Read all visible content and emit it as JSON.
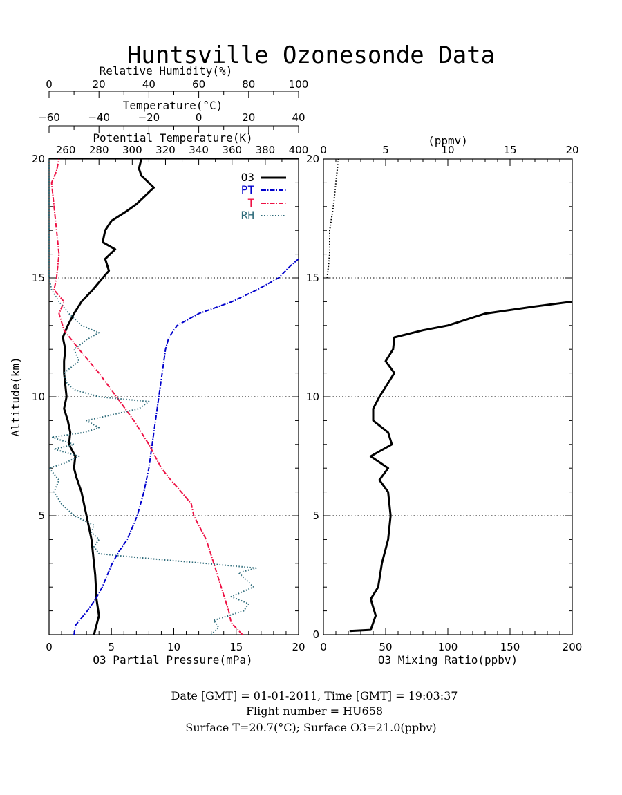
{
  "figure": {
    "title": "Huntsville Ozonesonde Data",
    "footer": [
      "Date [GMT] = 01-01-2011,  Time [GMT] = 19:03:37",
      "Flight number = HU658",
      "Surface T=20.7(°C); Surface O3=21.0(ppbv)"
    ]
  },
  "chart_data": [
    {
      "type": "line",
      "panel": "left",
      "title": "Huntsville Ozonesonde Data",
      "ylabel": "Altitude(km)",
      "ylim": [
        0,
        20
      ],
      "yticks": [
        5,
        10,
        15,
        20
      ],
      "reference_lines_km": [
        5,
        10,
        15
      ],
      "legend": {
        "position": "top-right",
        "entries": [
          "O3",
          "PT",
          "T",
          "RH"
        ]
      },
      "axes": {
        "o3": {
          "label": "O3 Partial Pressure(mPa)",
          "range": [
            0,
            20
          ],
          "ticks": [
            0,
            5,
            10,
            15,
            20
          ]
        },
        "rh": {
          "label": "Relative Humidity(%)",
          "range": [
            0,
            100
          ],
          "ticks": [
            0,
            20,
            40,
            60,
            80,
            100
          ]
        },
        "temp": {
          "label": "Temperature(°C)",
          "range": [
            -60,
            40
          ],
          "ticks": [
            -60,
            -40,
            -20,
            0,
            20,
            40
          ]
        },
        "pt": {
          "label": "Potential Temperature(K)",
          "range": [
            250,
            400
          ],
          "ticks": [
            260,
            280,
            300,
            320,
            340,
            360,
            380,
            400
          ]
        }
      },
      "series": [
        {
          "name": "O3",
          "axis": "o3",
          "color": "#000000",
          "style": "solid",
          "points": [
            [
              3.6,
              0
            ],
            [
              4.0,
              0.8
            ],
            [
              3.8,
              1.5
            ],
            [
              3.7,
              2.5
            ],
            [
              3.4,
              4.0
            ],
            [
              3.0,
              5.0
            ],
            [
              2.8,
              5.5
            ],
            [
              2.6,
              6.0
            ],
            [
              2.2,
              6.6
            ],
            [
              2.0,
              7.0
            ],
            [
              2.1,
              7.5
            ],
            [
              1.6,
              8.0
            ],
            [
              1.7,
              8.5
            ],
            [
              1.5,
              9.0
            ],
            [
              1.2,
              9.5
            ],
            [
              1.4,
              10.0
            ],
            [
              1.3,
              10.5
            ],
            [
              1.2,
              11.0
            ],
            [
              1.2,
              11.5
            ],
            [
              1.3,
              12.0
            ],
            [
              1.1,
              12.5
            ],
            [
              1.5,
              13.0
            ],
            [
              2.0,
              13.5
            ],
            [
              2.6,
              14.0
            ],
            [
              3.5,
              14.5
            ],
            [
              4.3,
              15.0
            ],
            [
              4.8,
              15.3
            ],
            [
              4.5,
              15.8
            ],
            [
              5.3,
              16.2
            ],
            [
              4.3,
              16.5
            ],
            [
              4.5,
              17.0
            ],
            [
              5.0,
              17.4
            ],
            [
              6.2,
              17.8
            ],
            [
              7.0,
              18.1
            ],
            [
              7.6,
              18.4
            ],
            [
              8.4,
              18.8
            ],
            [
              7.4,
              19.3
            ],
            [
              7.2,
              19.6
            ],
            [
              7.4,
              20.0
            ]
          ]
        },
        {
          "name": "PT",
          "axis": "pt",
          "color": "#0000cc",
          "style": "dash-dot",
          "points": [
            [
              265,
              0
            ],
            [
              266,
              0.4
            ],
            [
              273,
              1.0
            ],
            [
              278,
              1.5
            ],
            [
              282,
              2.0
            ],
            [
              285,
              2.5
            ],
            [
              288,
              3.0
            ],
            [
              292,
              3.5
            ],
            [
              297,
              4.0
            ],
            [
              303,
              5.0
            ],
            [
              307,
              6.0
            ],
            [
              310,
              7.0
            ],
            [
              312,
              8.0
            ],
            [
              314,
              9.0
            ],
            [
              316,
              10.0
            ],
            [
              318,
              11.0
            ],
            [
              320,
              12.0
            ],
            [
              322,
              12.5
            ],
            [
              327,
              13.0
            ],
            [
              340,
              13.5
            ],
            [
              360,
              14.0
            ],
            [
              375,
              14.5
            ],
            [
              388,
              15.0
            ],
            [
              395,
              15.5
            ],
            [
              400,
              15.8
            ]
          ]
        },
        {
          "name": "T",
          "axis": "temp",
          "color": "#ee1144",
          "style": "dash-dot",
          "points": [
            [
              17.5,
              0
            ],
            [
              13,
              0.5
            ],
            [
              12,
              1.0
            ],
            [
              9,
              2.0
            ],
            [
              6,
              3.0
            ],
            [
              3,
              4.0
            ],
            [
              -2,
              5.0
            ],
            [
              -3,
              5.5
            ],
            [
              -7,
              6.0
            ],
            [
              -12,
              6.6
            ],
            [
              -15,
              7.0
            ],
            [
              -20,
              8.0
            ],
            [
              -26,
              9.0
            ],
            [
              -33,
              10.0
            ],
            [
              -40,
              11.0
            ],
            [
              -48,
              12.0
            ],
            [
              -54,
              12.8
            ],
            [
              -56,
              13.5
            ],
            [
              -54,
              14.0
            ],
            [
              -58,
              14.5
            ],
            [
              -57,
              15.0
            ],
            [
              -56,
              16.0
            ],
            [
              -57,
              17.0
            ],
            [
              -58,
              18.0
            ],
            [
              -59,
              19.0
            ],
            [
              -57,
              19.5
            ],
            [
              -56,
              20.0
            ]
          ]
        },
        {
          "name": "RH",
          "axis": "rh",
          "color": "#2e6b7a",
          "style": "dotted",
          "points": [
            [
              65,
              0
            ],
            [
              68,
              0.3
            ],
            [
              66,
              0.6
            ],
            [
              78,
              1.0
            ],
            [
              80,
              1.3
            ],
            [
              73,
              1.6
            ],
            [
              82,
              2.0
            ],
            [
              79,
              2.3
            ],
            [
              76,
              2.6
            ],
            [
              83,
              2.8
            ],
            [
              62,
              3.0
            ],
            [
              40,
              3.2
            ],
            [
              20,
              3.4
            ],
            [
              18,
              3.7
            ],
            [
              20,
              4.0
            ],
            [
              17,
              4.3
            ],
            [
              18,
              4.6
            ],
            [
              10,
              5.0
            ],
            [
              5,
              5.5
            ],
            [
              2,
              6.0
            ],
            [
              4,
              6.5
            ],
            [
              0,
              7.0
            ],
            [
              6,
              7.2
            ],
            [
              12,
              7.5
            ],
            [
              2,
              7.8
            ],
            [
              10,
              8.0
            ],
            [
              1,
              8.3
            ],
            [
              14,
              8.5
            ],
            [
              20,
              8.7
            ],
            [
              15,
              9.0
            ],
            [
              36,
              9.5
            ],
            [
              40,
              9.8
            ],
            [
              20,
              10.0
            ],
            [
              10,
              10.3
            ],
            [
              7,
              10.6
            ],
            [
              6,
              11.0
            ],
            [
              12,
              11.5
            ],
            [
              10,
              12.0
            ],
            [
              15,
              12.4
            ],
            [
              20,
              12.7
            ],
            [
              13,
              13.0
            ],
            [
              8,
              13.5
            ],
            [
              4,
              14.0
            ],
            [
              1,
              14.5
            ],
            [
              0,
              15.0
            ],
            [
              0,
              20.0
            ]
          ]
        }
      ]
    },
    {
      "type": "line",
      "panel": "right",
      "xlabel": "O3 Mixing Ratio(ppbv)",
      "ylabel": "",
      "xlim": [
        0,
        200
      ],
      "xticks": [
        0,
        50,
        100,
        150,
        200
      ],
      "top_axis": {
        "label": "(ppmv)",
        "range": [
          0,
          20
        ],
        "ticks": [
          0,
          5,
          10,
          15,
          20
        ]
      },
      "ylim": [
        0,
        20
      ],
      "yticks": [
        0,
        5,
        10,
        15,
        20
      ],
      "reference_lines_km": [
        5,
        10,
        15
      ],
      "series": [
        {
          "name": "O3 ppbv",
          "color": "#000000",
          "style": "solid",
          "points": [
            [
              21,
              0.15
            ],
            [
              38,
              0.2
            ],
            [
              42,
              0.8
            ],
            [
              38,
              1.5
            ],
            [
              44,
              2.0
            ],
            [
              47,
              3.0
            ],
            [
              52,
              4.0
            ],
            [
              54,
              5.0
            ],
            [
              52,
              6.0
            ],
            [
              45,
              6.5
            ],
            [
              52,
              7.0
            ],
            [
              38,
              7.5
            ],
            [
              55,
              8.0
            ],
            [
              52,
              8.5
            ],
            [
              40,
              9.0
            ],
            [
              40,
              9.5
            ],
            [
              45,
              10.0
            ],
            [
              57,
              11.0
            ],
            [
              50,
              11.5
            ],
            [
              56,
              12.0
            ],
            [
              57,
              12.5
            ],
            [
              80,
              12.8
            ],
            [
              100,
              13.0
            ],
            [
              130,
              13.5
            ],
            [
              170,
              13.8
            ],
            [
              200,
              14.0
            ]
          ]
        },
        {
          "name": "O3 ppmv",
          "color": "#000000",
          "style": "dotted",
          "points": [
            [
              0.3,
              15.0
            ],
            [
              0.5,
              16.0
            ],
            [
              0.5,
              17.0
            ],
            [
              0.8,
              18.0
            ],
            [
              1.0,
              19.0
            ],
            [
              1.2,
              20.0
            ]
          ]
        }
      ]
    }
  ]
}
